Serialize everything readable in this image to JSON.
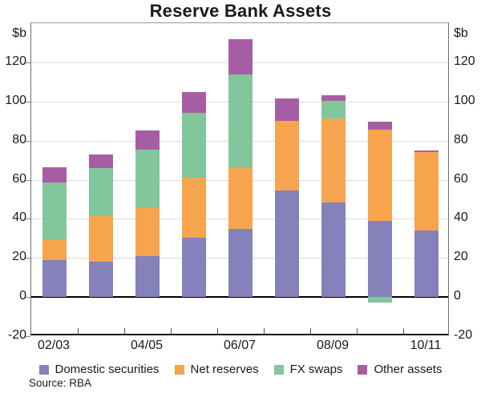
{
  "source_note": "Source: RBA",
  "chart_data": {
    "type": "bar",
    "stacked": true,
    "title": "Reserve Bank Assets",
    "ylabel_left": "$b",
    "ylabel_right": "$b",
    "categories": [
      "02/03",
      "03/04",
      "04/05",
      "05/06",
      "06/07",
      "07/08",
      "08/09",
      "09/10",
      "10/11"
    ],
    "x_axis_labels": [
      "02/03",
      "04/05",
      "06/07",
      "08/09",
      "10/11"
    ],
    "x_axis_label_slots": [
      0,
      2,
      4,
      6,
      8
    ],
    "series": [
      {
        "name": "Domestic securities",
        "color": "#8581BB",
        "values": [
          19,
          18,
          21,
          30.5,
          35,
          54.5,
          48.5,
          39,
          34
        ]
      },
      {
        "name": "Net reserves",
        "color": "#F6A44D",
        "values": [
          10.5,
          23.5,
          25,
          30.5,
          31,
          35.5,
          43,
          46.5,
          40
        ]
      },
      {
        "name": "FX swaps",
        "color": "#82C69B",
        "values": [
          29,
          24.5,
          29.5,
          33,
          48,
          0,
          9,
          -3,
          0
        ]
      },
      {
        "name": "Other assets",
        "color": "#A75DA4",
        "values": [
          8,
          7,
          9.5,
          11,
          18,
          11.5,
          2.5,
          4,
          1
        ]
      }
    ],
    "totals": [
      66.5,
      73,
      85,
      105,
      132,
      101.5,
      103,
      89.5,
      75
    ],
    "ylim": [
      -20,
      140
    ],
    "yticks": [
      -20,
      0,
      20,
      40,
      60,
      80,
      100,
      120
    ],
    "grid": true,
    "legend_position": "bottom"
  }
}
